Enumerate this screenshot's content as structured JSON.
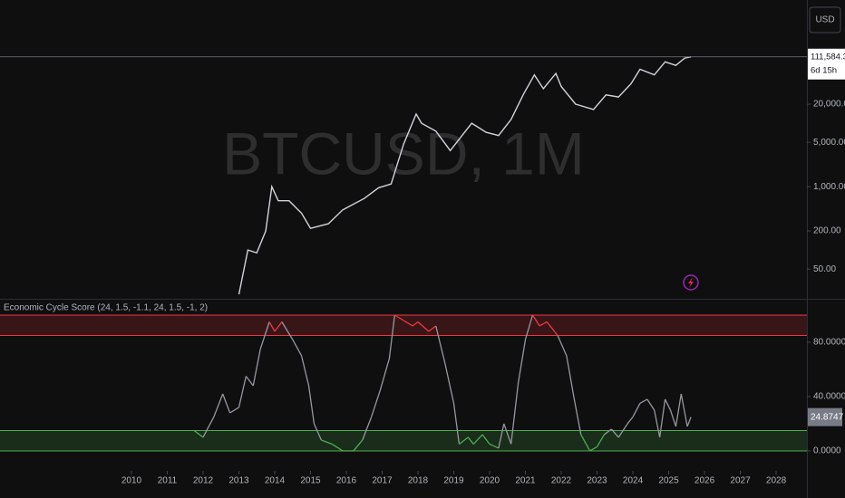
{
  "currency": "USD",
  "watermark": "BTCUSD, 1M",
  "chart_data": [
    {
      "type": "line",
      "log_scale": true,
      "color": "#d1d4dc",
      "x": [
        2013.0,
        2013.25,
        2013.5,
        2013.75,
        2013.92,
        2014.1,
        2014.4,
        2014.75,
        2015.0,
        2015.5,
        2015.9,
        2016.5,
        2016.9,
        2017.25,
        2017.6,
        2017.95,
        2018.1,
        2018.5,
        2018.9,
        2019.5,
        2019.9,
        2020.25,
        2020.6,
        2020.95,
        2021.25,
        2021.5,
        2021.85,
        2022.0,
        2022.4,
        2022.9,
        2023.25,
        2023.6,
        2023.95,
        2024.2,
        2024.6,
        2024.9,
        2025.2,
        2025.45,
        2025.62
      ],
      "values": [
        20,
        100,
        90,
        200,
        1000,
        600,
        600,
        380,
        220,
        260,
        430,
        650,
        960,
        1100,
        4700,
        14000,
        10000,
        7500,
        3700,
        10000,
        7200,
        6400,
        11500,
        29000,
        58000,
        35000,
        61000,
        38000,
        20000,
        16500,
        28000,
        26000,
        42000,
        71000,
        58000,
        93000,
        82000,
        107000,
        111584.3
      ],
      "last_label": "111,584.30",
      "countdown": "6d 15h",
      "xlim": [
        2006.33,
        2028.86
      ],
      "ylim": [
        17,
        880000
      ],
      "yticks": [
        {
          "value": 50,
          "label": "50.00"
        },
        {
          "value": 200,
          "label": "200.00"
        },
        {
          "value": 1000,
          "label": "1,000.00"
        },
        {
          "value": 5000,
          "label": "5,000.00"
        },
        {
          "value": 20000,
          "label": "20,000.00"
        }
      ]
    },
    {
      "type": "line",
      "title": "Economic Cycle Score (24, 1.5, -1.1, 24, 1.5, -1, 2)",
      "color": "#9598a1",
      "x": [
        2011.75,
        2012.0,
        2012.3,
        2012.55,
        2012.75,
        2013.0,
        2013.2,
        2013.4,
        2013.6,
        2013.85,
        2014.0,
        2014.2,
        2014.5,
        2014.75,
        2014.95,
        2015.1,
        2015.3,
        2015.6,
        2015.9,
        2016.2,
        2016.45,
        2016.7,
        2016.95,
        2017.2,
        2017.35,
        2017.6,
        2017.85,
        2018.0,
        2018.3,
        2018.5,
        2018.75,
        2019.0,
        2019.15,
        2019.4,
        2019.55,
        2019.8,
        2020.0,
        2020.25,
        2020.4,
        2020.6,
        2020.8,
        2021.0,
        2021.2,
        2021.4,
        2021.6,
        2021.9,
        2022.15,
        2022.35,
        2022.55,
        2022.8,
        2023.0,
        2023.2,
        2023.4,
        2023.6,
        2023.85,
        2024.0,
        2024.2,
        2024.4,
        2024.6,
        2024.75,
        2024.9,
        2025.05,
        2025.2,
        2025.35,
        2025.45,
        2025.52,
        2025.58,
        2025.62
      ],
      "values": [
        15,
        10,
        25,
        42,
        28,
        32,
        55,
        48,
        75,
        95,
        88,
        95,
        82,
        70,
        48,
        20,
        8,
        5,
        0,
        0,
        8,
        25,
        45,
        68,
        100,
        96,
        92,
        95,
        88,
        92,
        65,
        35,
        5,
        10,
        5,
        12,
        5,
        2,
        20,
        5,
        50,
        82,
        100,
        92,
        95,
        85,
        70,
        40,
        12,
        0,
        3,
        12,
        16,
        10,
        20,
        25,
        35,
        38,
        30,
        10,
        38,
        30,
        18,
        42,
        28,
        18,
        22,
        24.8747
      ],
      "last_label": "24.8747",
      "bands": [
        {
          "from": 85,
          "to": 100,
          "color": "#f23645"
        },
        {
          "from": 0,
          "to": 15,
          "color": "#4caf50"
        }
      ],
      "xlim": [
        2006.33,
        2028.86
      ],
      "ylim": [
        -14.7,
        110
      ],
      "yticks": [
        {
          "value": 0,
          "label": "0.0000"
        },
        {
          "value": 40,
          "label": "40.0000"
        },
        {
          "value": 80,
          "label": "80.0000"
        }
      ],
      "xticks": [
        2010,
        2011,
        2012,
        2013,
        2014,
        2015,
        2016,
        2017,
        2018,
        2019,
        2020,
        2021,
        2022,
        2023,
        2024,
        2025,
        2026,
        2027,
        2028
      ]
    }
  ]
}
